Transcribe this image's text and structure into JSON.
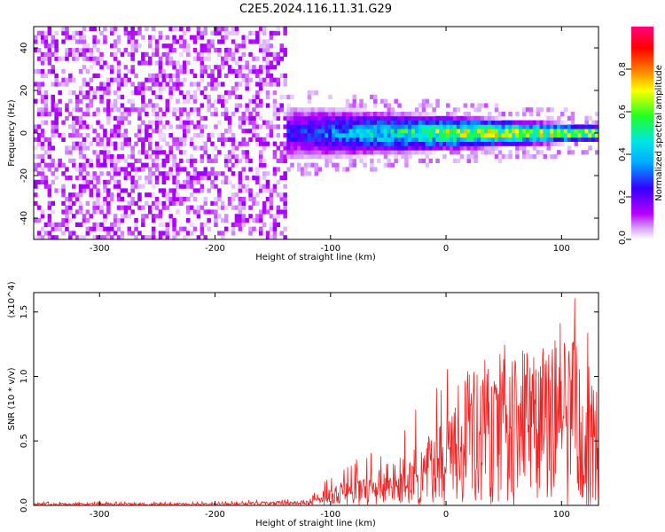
{
  "title": "C2E5.2024.116.11.31.G29",
  "chart_data": [
    {
      "type": "heatmap",
      "xlabel": "Height of straight line (km)",
      "ylabel": "Frequency (Hz)",
      "xlim": [
        -357,
        132
      ],
      "ylim": [
        -50,
        50
      ],
      "x_ticks": [
        -300,
        -200,
        -100,
        0,
        100
      ],
      "y_ticks": [
        -40,
        -20,
        0,
        20,
        40
      ],
      "colorbar": {
        "label": "Normalized spectral amplitude",
        "range": [
          0,
          1
        ],
        "ticks": [
          "0.0",
          "0.2",
          "0.4",
          "0.6",
          "0.8"
        ],
        "colors": [
          "#ffffff",
          "#b800ff",
          "#3300ff",
          "#00e6ff",
          "#22ff22",
          "#ffff00",
          "#ff7700",
          "#ff0000",
          "#ff0080"
        ]
      },
      "regions": [
        {
          "name": "noise",
          "x_range": [
            -357,
            -140
          ],
          "freq_range": [
            -50,
            50
          ],
          "amplitude_range": [
            0.02,
            0.15
          ]
        },
        {
          "name": "signal",
          "x_range": [
            -140,
            132
          ],
          "freq_center": 0,
          "freq_halfwidth": [
            14,
            4
          ],
          "peak_amplitude_range": [
            0.3,
            0.95
          ]
        }
      ],
      "grid": false
    },
    {
      "type": "line",
      "xlabel": "Height of straight line (km)",
      "ylabel": "SNR (10 * v/v)",
      "y_multiplier": "(x10^4)",
      "xlim": [
        -357,
        132
      ],
      "ylim": [
        0,
        1.65
      ],
      "x_ticks": [
        -300,
        -200,
        -100,
        0,
        100
      ],
      "y_ticks": [
        "0.0",
        "0.5",
        "1.0",
        "1.5"
      ],
      "series": [
        {
          "color": "#ee2222",
          "envelope": {
            "x": [
              -357,
              -200,
              -120,
              -100,
              -60,
              -20,
              0,
              40,
              80,
              110,
              132
            ],
            "mean": [
              0.01,
              0.01,
              0.02,
              0.08,
              0.15,
              0.25,
              0.38,
              0.55,
              0.65,
              0.7,
              0.5
            ],
            "max": [
              0.03,
              0.03,
              0.06,
              0.25,
              0.45,
              0.8,
              1.08,
              1.25,
              1.35,
              1.65,
              1.2
            ]
          }
        }
      ],
      "grid": false
    }
  ]
}
